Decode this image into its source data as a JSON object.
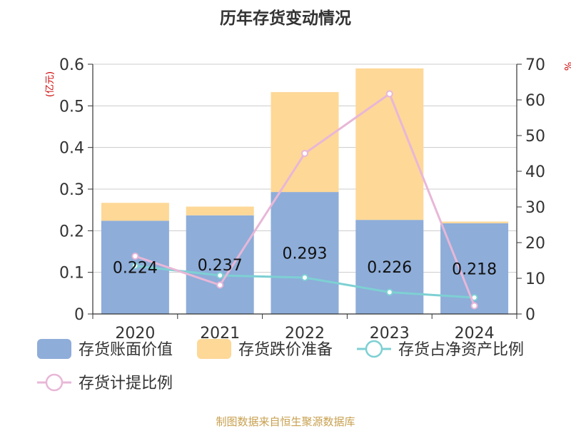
{
  "chart_data": {
    "type": "bar",
    "title": "历年存货变动情况",
    "y_left_unit": "(亿元)",
    "y_right_unit": "%",
    "categories": [
      "2020",
      "2021",
      "2022",
      "2023",
      "2024"
    ],
    "ylim_left": [
      0,
      0.6
    ],
    "yticks_left": [
      "0",
      "0.1",
      "0.2",
      "0.3",
      "0.4",
      "0.5",
      "0.6"
    ],
    "ylim_right": [
      0,
      70
    ],
    "yticks_right": [
      "0",
      "10",
      "20",
      "30",
      "40",
      "50",
      "60",
      "70"
    ],
    "grid": true,
    "stacked": true,
    "legend_position": "bottom",
    "series": [
      {
        "name": "存货账面价值",
        "kind": "bar",
        "axis": "left",
        "color": "#8eadd9",
        "values": [
          0.224,
          0.237,
          0.293,
          0.226,
          0.218
        ],
        "labels": [
          "0.224",
          "0.237",
          "0.293",
          "0.226",
          "0.218"
        ]
      },
      {
        "name": "存货跌价准备",
        "kind": "bar",
        "axis": "left",
        "color": "#fed897",
        "values": [
          0.043,
          0.021,
          0.24,
          0.364,
          0.004
        ]
      },
      {
        "name": "存货占净资产比例",
        "kind": "line",
        "axis": "right",
        "color": "#7dd0d3",
        "values": [
          13.5,
          10.8,
          10.2,
          6.1,
          4.6
        ]
      },
      {
        "name": "存货计提比例",
        "kind": "line",
        "axis": "right",
        "color": "#e8b7d7",
        "values": [
          16.2,
          8.1,
          45.0,
          61.7,
          2.3
        ]
      }
    ]
  },
  "source_note": "制图数据来自恒生聚源数据库"
}
